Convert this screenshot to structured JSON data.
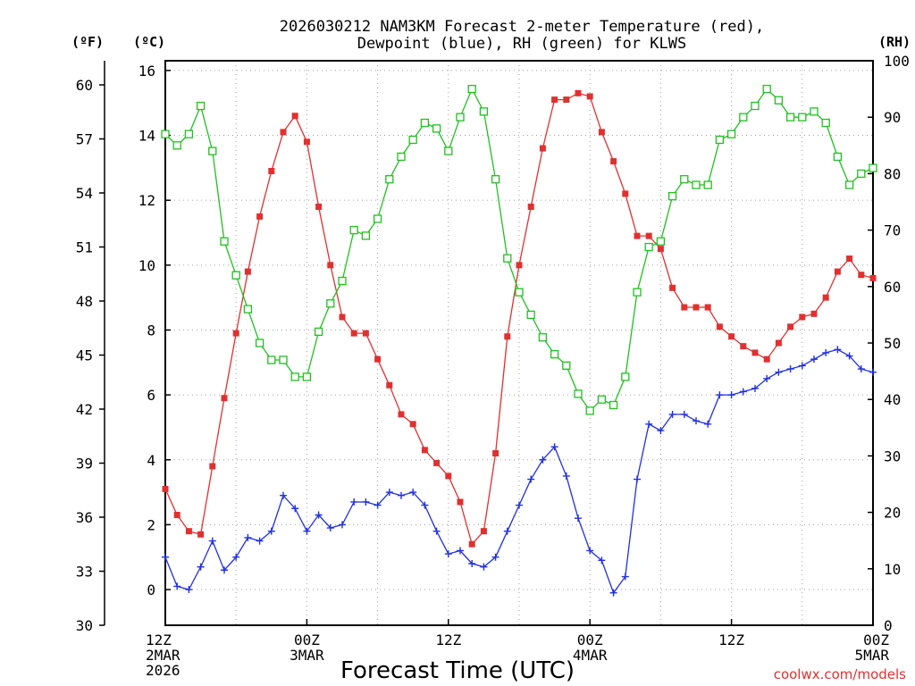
{
  "chart_data": {
    "type": "line",
    "title_line1": "2026030212 NAM3KM Forecast 2-meter Temperature (red),",
    "title_line2": "Dewpoint (blue), RH (green) for KLWS",
    "xlabel": "Forecast Time (UTC)",
    "credit": "coolwx.com/models",
    "units": {
      "fahrenheit": "(ºF)",
      "celsius": "(ºC)",
      "rh": "(RH)"
    },
    "x_range_hours": [
      0,
      60
    ],
    "celsius_range": [
      -1.1,
      16.3
    ],
    "rh_range": [
      0,
      100
    ],
    "fahrenheit_range": [
      30,
      61.34
    ],
    "celsius_ticks": [
      "0",
      "2",
      "4",
      "6",
      "8",
      "10",
      "12",
      "14",
      "16"
    ],
    "fahrenheit_ticks": [
      "30",
      "33",
      "36",
      "39",
      "42",
      "45",
      "48",
      "51",
      "54",
      "57",
      "60"
    ],
    "rh_ticks": [
      "0",
      "10",
      "20",
      "30",
      "40",
      "50",
      "60",
      "70",
      "80",
      "90",
      "100"
    ],
    "x_ticks": [
      {
        "hour": 0,
        "lines": [
          "12Z",
          "2MAR",
          "2026"
        ]
      },
      {
        "hour": 12,
        "lines": [
          "00Z",
          "3MAR"
        ]
      },
      {
        "hour": 24,
        "lines": [
          "12Z"
        ]
      },
      {
        "hour": 36,
        "lines": [
          "00Z",
          "4MAR"
        ]
      },
      {
        "hour": 48,
        "lines": [
          "12Z"
        ]
      },
      {
        "hour": 60,
        "lines": [
          "00Z",
          "5MAR"
        ]
      }
    ],
    "series": [
      {
        "name": "Temperature (C)",
        "color": "#e03030",
        "axis": "celsius",
        "marker": "filled-square",
        "values": [
          3.1,
          2.3,
          1.8,
          1.7,
          3.8,
          5.9,
          7.9,
          9.8,
          11.5,
          12.9,
          14.1,
          14.6,
          13.8,
          11.8,
          10.0,
          8.4,
          7.9,
          7.9,
          7.1,
          6.3,
          5.4,
          5.1,
          4.3,
          3.9,
          3.5,
          2.7,
          1.4,
          1.8,
          4.2,
          7.8,
          10.0,
          11.8,
          13.6,
          15.1,
          15.1,
          15.3,
          15.2,
          14.1,
          13.2,
          12.2,
          10.9,
          10.9,
          10.5,
          9.3,
          8.7,
          8.7,
          8.7,
          8.1,
          7.8,
          7.5,
          7.3,
          7.1,
          7.6,
          8.1,
          8.4,
          8.5,
          9.0,
          9.8,
          10.2,
          9.7,
          9.6
        ]
      },
      {
        "name": "Dewpoint (C)",
        "color": "#2030e0",
        "axis": "celsius",
        "marker": "plus",
        "values": [
          1.0,
          0.1,
          0.0,
          0.7,
          1.5,
          0.6,
          1.0,
          1.6,
          1.5,
          1.8,
          2.9,
          2.5,
          1.8,
          2.3,
          1.9,
          2.0,
          2.7,
          2.7,
          2.6,
          3.0,
          2.9,
          3.0,
          2.6,
          1.8,
          1.1,
          1.2,
          0.8,
          0.7,
          1.0,
          1.8,
          2.6,
          3.4,
          4.0,
          4.4,
          3.5,
          2.2,
          1.2,
          0.9,
          -0.1,
          0.4,
          3.4,
          5.1,
          4.9,
          5.4,
          5.4,
          5.2,
          5.1,
          6.0,
          6.0,
          6.1,
          6.2,
          6.5,
          6.7,
          6.8,
          6.9,
          7.1,
          7.3,
          7.4,
          7.2,
          6.8,
          6.7
        ]
      },
      {
        "name": "RH (%)",
        "color": "#20c020",
        "axis": "rh",
        "marker": "open-square",
        "values": [
          87,
          85,
          87,
          92,
          84,
          68,
          62,
          56,
          50,
          47,
          47,
          44,
          44,
          52,
          57,
          61,
          70,
          69,
          72,
          79,
          83,
          86,
          89,
          88,
          84,
          90,
          95,
          91,
          79,
          65,
          59,
          55,
          51,
          48,
          46,
          41,
          38,
          40,
          39,
          44,
          59,
          67,
          68,
          76,
          79,
          78,
          78,
          86,
          87,
          90,
          92,
          95,
          93,
          90,
          90,
          91,
          89,
          83,
          78,
          80,
          81
        ]
      }
    ]
  }
}
